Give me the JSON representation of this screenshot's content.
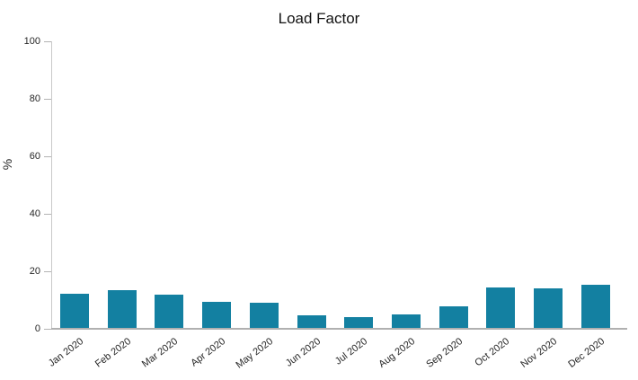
{
  "chart_data": {
    "type": "bar",
    "title": "Load Factor",
    "xlabel": "",
    "ylabel": "%",
    "ylim": [
      0,
      100
    ],
    "yticks": [
      0,
      20,
      40,
      60,
      80,
      100
    ],
    "categories": [
      "Jan 2020",
      "Feb 2020",
      "Mar 2020",
      "Apr 2020",
      "May 2020",
      "Jun 2020",
      "Jul 2020",
      "Aug 2020",
      "Sep 2020",
      "Oct 2020",
      "Nov 2020",
      "Dec 2020"
    ],
    "values": [
      12.1,
      13.3,
      11.9,
      9.5,
      9.0,
      4.6,
      4.1,
      5.1,
      7.9,
      14.4,
      14.1,
      15.2
    ],
    "grid": false,
    "legend": false,
    "colors": {
      "bar": "#1380A1",
      "y_axis_line": "#c9c9c9",
      "x_axis_line": "#b0b0b0",
      "tick_mark": "#b3b3b3",
      "tick_label": "#262626",
      "title": "#111111",
      "background": "#ffffff"
    }
  }
}
